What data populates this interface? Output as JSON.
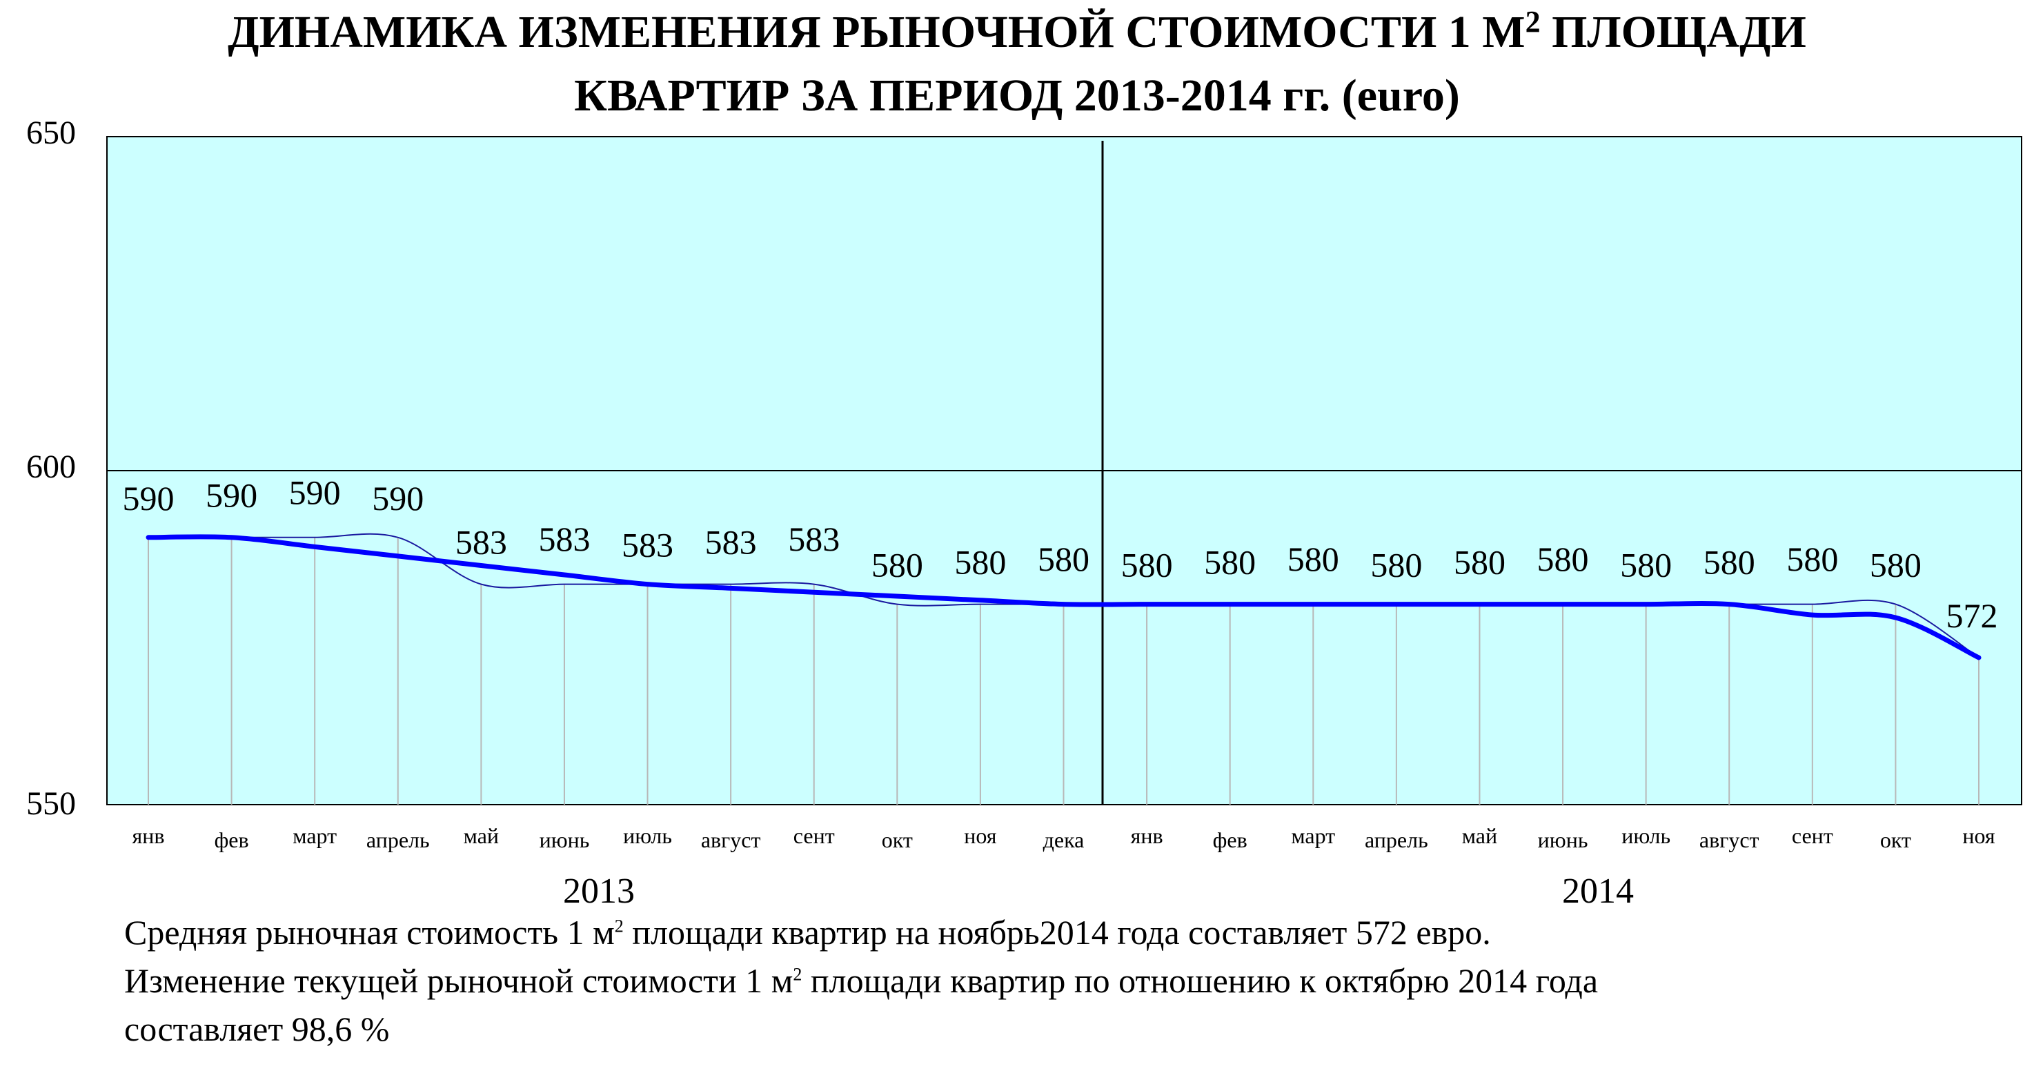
{
  "chart_data": {
    "type": "line",
    "title": {
      "line1_before_sup": "ДИНАМИКА ИЗМЕНЕНИЯ РЫНОЧНОЙ СТОИМОСТИ 1 М",
      "line1_sup": "2",
      "line1_after_sup": " ПЛОЩАДИ",
      "line2": "КВАРТИР ЗА ПЕРИОД 2013-2014 гг. (euro)"
    },
    "ylim": [
      550,
      650
    ],
    "yticks": [
      "550",
      "600",
      "650"
    ],
    "grid": "horizontal line at 600, vertical divider between years",
    "plot_background": "#ccffff",
    "line_color": "#0000ff",
    "x": [
      "янв",
      "фев",
      "март",
      "апрель",
      "май",
      "июнь",
      "июль",
      "август",
      "сент",
      "окт",
      "ноя",
      "дека",
      "янв",
      "фев",
      "март",
      "апрель",
      "май",
      "июнь",
      "июль",
      "август",
      "сент",
      "окт",
      "ноя"
    ],
    "years": [
      "2013",
      "2014"
    ],
    "series": [
      {
        "values": [
          590,
          590,
          590,
          590,
          583,
          583,
          583,
          583,
          583,
          580,
          580,
          580,
          580,
          580,
          580,
          580,
          580,
          580,
          580,
          580,
          580,
          580,
          572
        ],
        "labels": [
          "590",
          "590",
          "590",
          "590",
          "583",
          "583",
          "583",
          "583",
          "583",
          "580",
          "580",
          "580",
          "580",
          "580",
          "580",
          "580",
          "580",
          "580",
          "580",
          "580",
          "580",
          "580",
          "572"
        ]
      }
    ]
  },
  "footer": {
    "line1_part1": "Средняя рыночная стоимость 1 м",
    "line1_sup": "2",
    "line1_part2": " площади квартир на ноябрь2014 года составляет 572 евро.",
    "line2_part1": "Изменение текущей рыночной стоимости 1 м",
    "line2_sup": "2",
    "line2_part2": " площади квартир по отношению к октябрю 2014 года",
    "line3": "составляет 98,6 %"
  }
}
